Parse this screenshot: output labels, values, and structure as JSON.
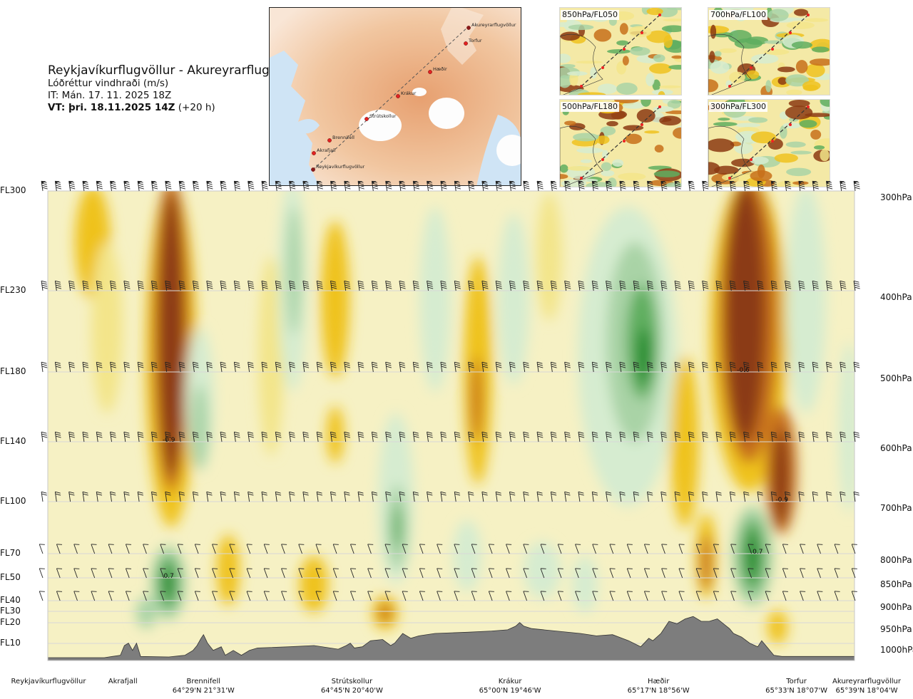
{
  "header": {
    "route": "Reykjavíkurflugvöllur - Akureyrarflugvöllur",
    "parameter": "Lóðréttur vindhraði (m/s)",
    "issue_time": "IT: Mán. 17. 11. 2025 18Z",
    "valid_label": "VT: þri. 18.11.2025 14Z",
    "valid_offset": "(+20 h)"
  },
  "overview_map": {
    "stations": [
      {
        "name": "Akureyrarflugvöllur"
      },
      {
        "name": "Torfur"
      },
      {
        "name": "Hæðir"
      },
      {
        "name": "Krákur"
      },
      {
        "name": "Strútskollur"
      },
      {
        "name": "Brennifell"
      },
      {
        "name": "Akrafjall"
      },
      {
        "name": "Reykjavíkurflugvöllur"
      }
    ]
  },
  "mini_maps": [
    {
      "label": "850hPa/FL050"
    },
    {
      "label": "700hPa/FL100"
    },
    {
      "label": "500hPa/FL180"
    },
    {
      "label": "300hPa/FL300"
    }
  ],
  "chart_data": {
    "type": "heatmap",
    "x_axis": "distance along route",
    "levels": [
      {
        "fl": "FL300",
        "hpa": "300hPa",
        "p": 300
      },
      {
        "fl": "FL230",
        "hpa": "400hPa",
        "p": 400
      },
      {
        "fl": "FL180",
        "hpa": "500hPa",
        "p": 500
      },
      {
        "fl": "FL140",
        "hpa": "600hPa",
        "p": 600
      },
      {
        "fl": "FL100",
        "hpa": "700hPa",
        "p": 700
      },
      {
        "fl": "FL70",
        "hpa": "800hPa",
        "p": 800
      },
      {
        "fl": "FL50",
        "hpa": "850hPa",
        "p": 850
      },
      {
        "fl": "FL40",
        "hpa": "900hPa",
        "p": 900
      },
      {
        "fl": "FL30",
        "hpa": "",
        "p": 925
      },
      {
        "fl": "FL20",
        "hpa": "950hPa",
        "p": 950
      },
      {
        "fl": "FL10",
        "hpa": "1000hPa",
        "p": 1000
      }
    ],
    "locations": [
      {
        "name": "Reykjavíkurflugvöllur",
        "coord": "",
        "pos": 0.0
      },
      {
        "name": "Akrafjall",
        "coord": "",
        "pos": 0.093
      },
      {
        "name": "Brennifell",
        "coord": "64°29'N 21°31'W",
        "pos": 0.193
      },
      {
        "name": "Strútskollur",
        "coord": "64°45'N 20°40'W",
        "pos": 0.377
      },
      {
        "name": "Krákur",
        "coord": "65°00'N 19°46'W",
        "pos": 0.573
      },
      {
        "name": "Hæðir",
        "coord": "65°17'N 18°56'W",
        "pos": 0.757
      },
      {
        "name": "Torfur",
        "coord": "65°33'N 18°07'W",
        "pos": 0.928
      },
      {
        "name": "Akureyrarflugvöllur",
        "coord": "65°39'N 18°04'W",
        "pos": 1.0
      }
    ],
    "annotations": [
      {
        "text": "-0.9",
        "pos": 0.15,
        "p": 600
      },
      {
        "text": "0.7",
        "pos": 0.15,
        "p": 850
      },
      {
        "text": "-0.6",
        "pos": 0.862,
        "p": 500
      },
      {
        "text": "-0.9",
        "pos": 0.91,
        "p": 700
      },
      {
        "text": "0.7",
        "pos": 0.88,
        "p": 800
      }
    ],
    "color_scale": {
      "strong_down": "#8b3a12",
      "mod_down": "#c7701a",
      "weak_down": "#efc21e",
      "slight_down": "#f3e58a",
      "neutral": "#f6f1c4",
      "slight_up": "#d6ecd0",
      "weak_up": "#a9d3a6",
      "mod_up": "#5fae5f",
      "strong_up": "#1f8a2a",
      "terrain": "#7d7d7d"
    }
  }
}
